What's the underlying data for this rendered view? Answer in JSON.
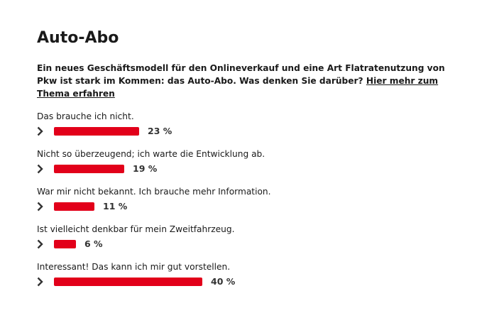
{
  "poll": {
    "title": "Auto-Abo",
    "intro_text": "Ein neues Geschäftsmodell für den Onlineverkauf und eine Art Flatratenutzung von Pkw ist stark im Kommen: das Auto-Abo. Was denken Sie darüber?",
    "intro_link": "Hier mehr zum Thema erfahren",
    "bar_color": "#e2001a",
    "expand_icon": "chevron-right-icon",
    "options": [
      {
        "label": "Das brauche ich nicht.",
        "percent": 23,
        "percent_label": "23 %"
      },
      {
        "label": "Nicht so überzeugend; ich warte die Entwicklung ab.",
        "percent": 19,
        "percent_label": "19 %"
      },
      {
        "label": "War mir nicht bekannt. Ich brauche mehr Information.",
        "percent": 11,
        "percent_label": "11 %"
      },
      {
        "label": "Ist vielleicht denkbar für mein Zweitfahrzeug.",
        "percent": 6,
        "percent_label": "6 %"
      },
      {
        "label": "Interessant! Das kann ich mir gut vorstellen.",
        "percent": 40,
        "percent_label": "40 %"
      }
    ]
  }
}
